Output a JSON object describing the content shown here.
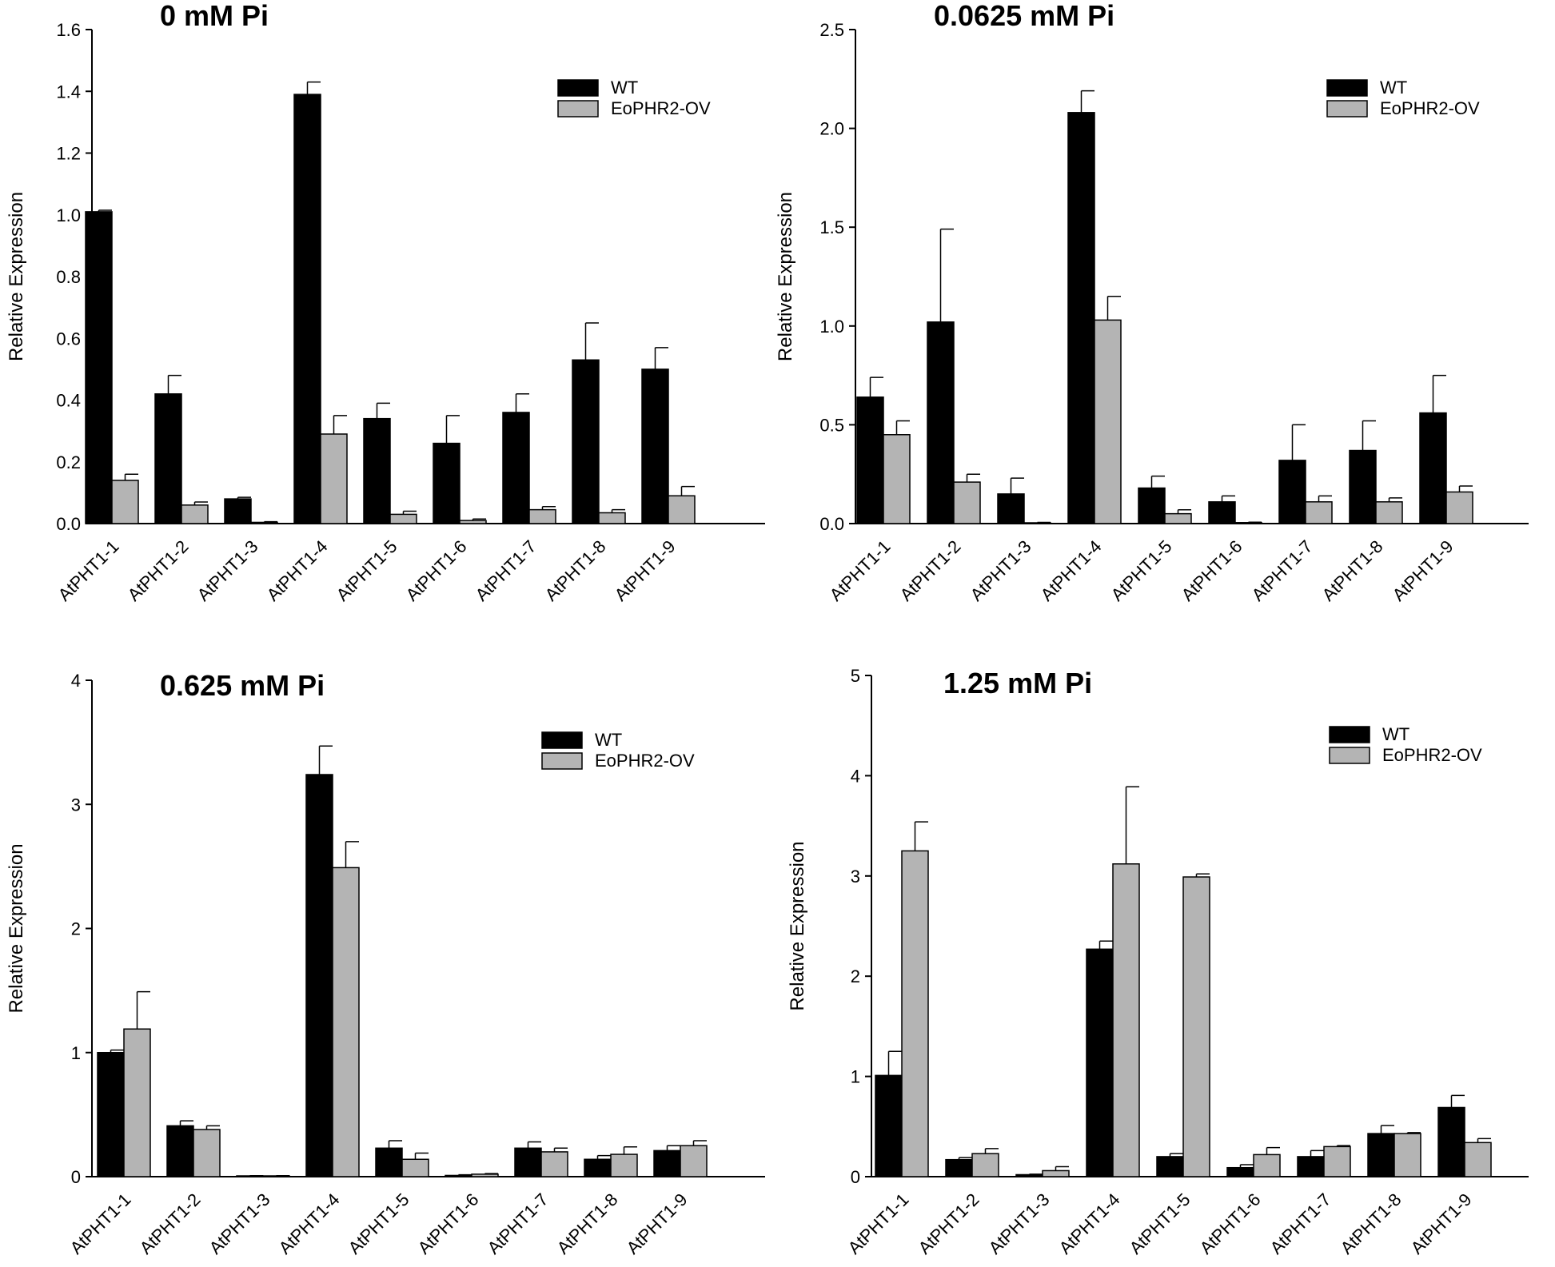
{
  "chart_data": [
    {
      "type": "bar",
      "title": "0 mM Pi",
      "ylabel": "Relative Expression",
      "xlabel": "",
      "ylim": [
        0,
        1.6
      ],
      "yticks": [
        "0.0",
        "0.2",
        "0.4",
        "0.6",
        "0.8",
        "1.0",
        "1.2",
        "1.4",
        "1.6"
      ],
      "categories": [
        "AtPHT1-1",
        "AtPHT1-2",
        "AtPHT1-3",
        "AtPHT1-4",
        "AtPHT1-5",
        "AtPHT1-6",
        "AtPHT1-7",
        "AtPHT1-8",
        "AtPHT1-9"
      ],
      "legend_position": "top-right",
      "series": [
        {
          "name": "WT",
          "color": "#000000",
          "values": [
            1.01,
            0.42,
            0.08,
            1.39,
            0.34,
            0.26,
            0.36,
            0.53,
            0.5
          ],
          "errors": [
            0.005,
            0.06,
            0.005,
            0.04,
            0.05,
            0.09,
            0.06,
            0.12,
            0.07
          ]
        },
        {
          "name": "EoPHR2-OV",
          "color": "#b4b4b4",
          "values": [
            0.14,
            0.06,
            0.004,
            0.29,
            0.03,
            0.01,
            0.045,
            0.035,
            0.09
          ],
          "errors": [
            0.02,
            0.01,
            0.002,
            0.06,
            0.01,
            0.005,
            0.01,
            0.01,
            0.03
          ]
        }
      ]
    },
    {
      "type": "bar",
      "title": "0.0625 mM Pi",
      "ylabel": "Relative Expression",
      "xlabel": "",
      "ylim": [
        0,
        2.5
      ],
      "yticks": [
        "0.0",
        "0.5",
        "1.0",
        "1.5",
        "2.0",
        "2.5"
      ],
      "categories": [
        "AtPHT1-1",
        "AtPHT1-2",
        "AtPHT1-3",
        "AtPHT1-4",
        "AtPHT1-5",
        "AtPHT1-6",
        "AtPHT1-7",
        "AtPHT1-8",
        "AtPHT1-9"
      ],
      "legend_position": "top-right",
      "series": [
        {
          "name": "WT",
          "color": "#000000",
          "values": [
            0.64,
            1.02,
            0.15,
            2.08,
            0.18,
            0.11,
            0.32,
            0.37,
            0.56
          ],
          "errors": [
            0.1,
            0.47,
            0.08,
            0.11,
            0.06,
            0.03,
            0.18,
            0.15,
            0.19
          ]
        },
        {
          "name": "EoPHR2-OV",
          "color": "#b4b4b4",
          "values": [
            0.45,
            0.21,
            0.004,
            1.03,
            0.05,
            0.005,
            0.11,
            0.11,
            0.16
          ],
          "errors": [
            0.07,
            0.04,
            0.002,
            0.12,
            0.02,
            0.002,
            0.03,
            0.02,
            0.03
          ]
        }
      ]
    },
    {
      "type": "bar",
      "title": "0.625 mM Pi",
      "ylabel": "Relative Expression",
      "xlabel": "",
      "ylim": [
        0,
        4
      ],
      "yticks": [
        "0",
        "1",
        "2",
        "3",
        "4"
      ],
      "categories": [
        "AtPHT1-1",
        "AtPHT1-2",
        "AtPHT1-3",
        "AtPHT1-4",
        "AtPHT1-5",
        "AtPHT1-6",
        "AtPHT1-7",
        "AtPHT1-8",
        "AtPHT1-9"
      ],
      "legend_position": "top-right",
      "series": [
        {
          "name": "WT",
          "color": "#000000",
          "values": [
            1.0,
            0.41,
            0.005,
            3.24,
            0.23,
            0.01,
            0.23,
            0.14,
            0.21
          ],
          "errors": [
            0.02,
            0.04,
            0.003,
            0.23,
            0.06,
            0.005,
            0.05,
            0.03,
            0.04
          ]
        },
        {
          "name": "EoPHR2-OV",
          "color": "#b4b4b4",
          "values": [
            1.19,
            0.38,
            0.005,
            2.49,
            0.14,
            0.02,
            0.2,
            0.18,
            0.25
          ],
          "errors": [
            0.3,
            0.03,
            0.003,
            0.21,
            0.05,
            0.005,
            0.03,
            0.06,
            0.04
          ]
        }
      ]
    },
    {
      "type": "bar",
      "title": "1.25 mM Pi",
      "ylabel": "Relative Expression",
      "xlabel": "",
      "ylim": [
        0,
        5
      ],
      "yticks": [
        "0",
        "1",
        "2",
        "3",
        "4",
        "5"
      ],
      "categories": [
        "AtPHT1-1",
        "AtPHT1-2",
        "AtPHT1-3",
        "AtPHT1-4",
        "AtPHT1-5",
        "AtPHT1-6",
        "AtPHT1-7",
        "AtPHT1-8",
        "AtPHT1-9"
      ],
      "legend_position": "top-right",
      "series": [
        {
          "name": "WT",
          "color": "#000000",
          "values": [
            1.01,
            0.17,
            0.02,
            2.27,
            0.2,
            0.09,
            0.2,
            0.43,
            0.69
          ],
          "errors": [
            0.24,
            0.02,
            0.005,
            0.08,
            0.03,
            0.03,
            0.06,
            0.08,
            0.12
          ]
        },
        {
          "name": "EoPHR2-OV",
          "color": "#b4b4b4",
          "values": [
            3.25,
            0.23,
            0.06,
            3.12,
            2.99,
            0.22,
            0.3,
            0.43,
            0.34
          ],
          "errors": [
            0.29,
            0.05,
            0.04,
            0.77,
            0.03,
            0.07,
            0.01,
            0.01,
            0.04
          ]
        }
      ]
    }
  ]
}
